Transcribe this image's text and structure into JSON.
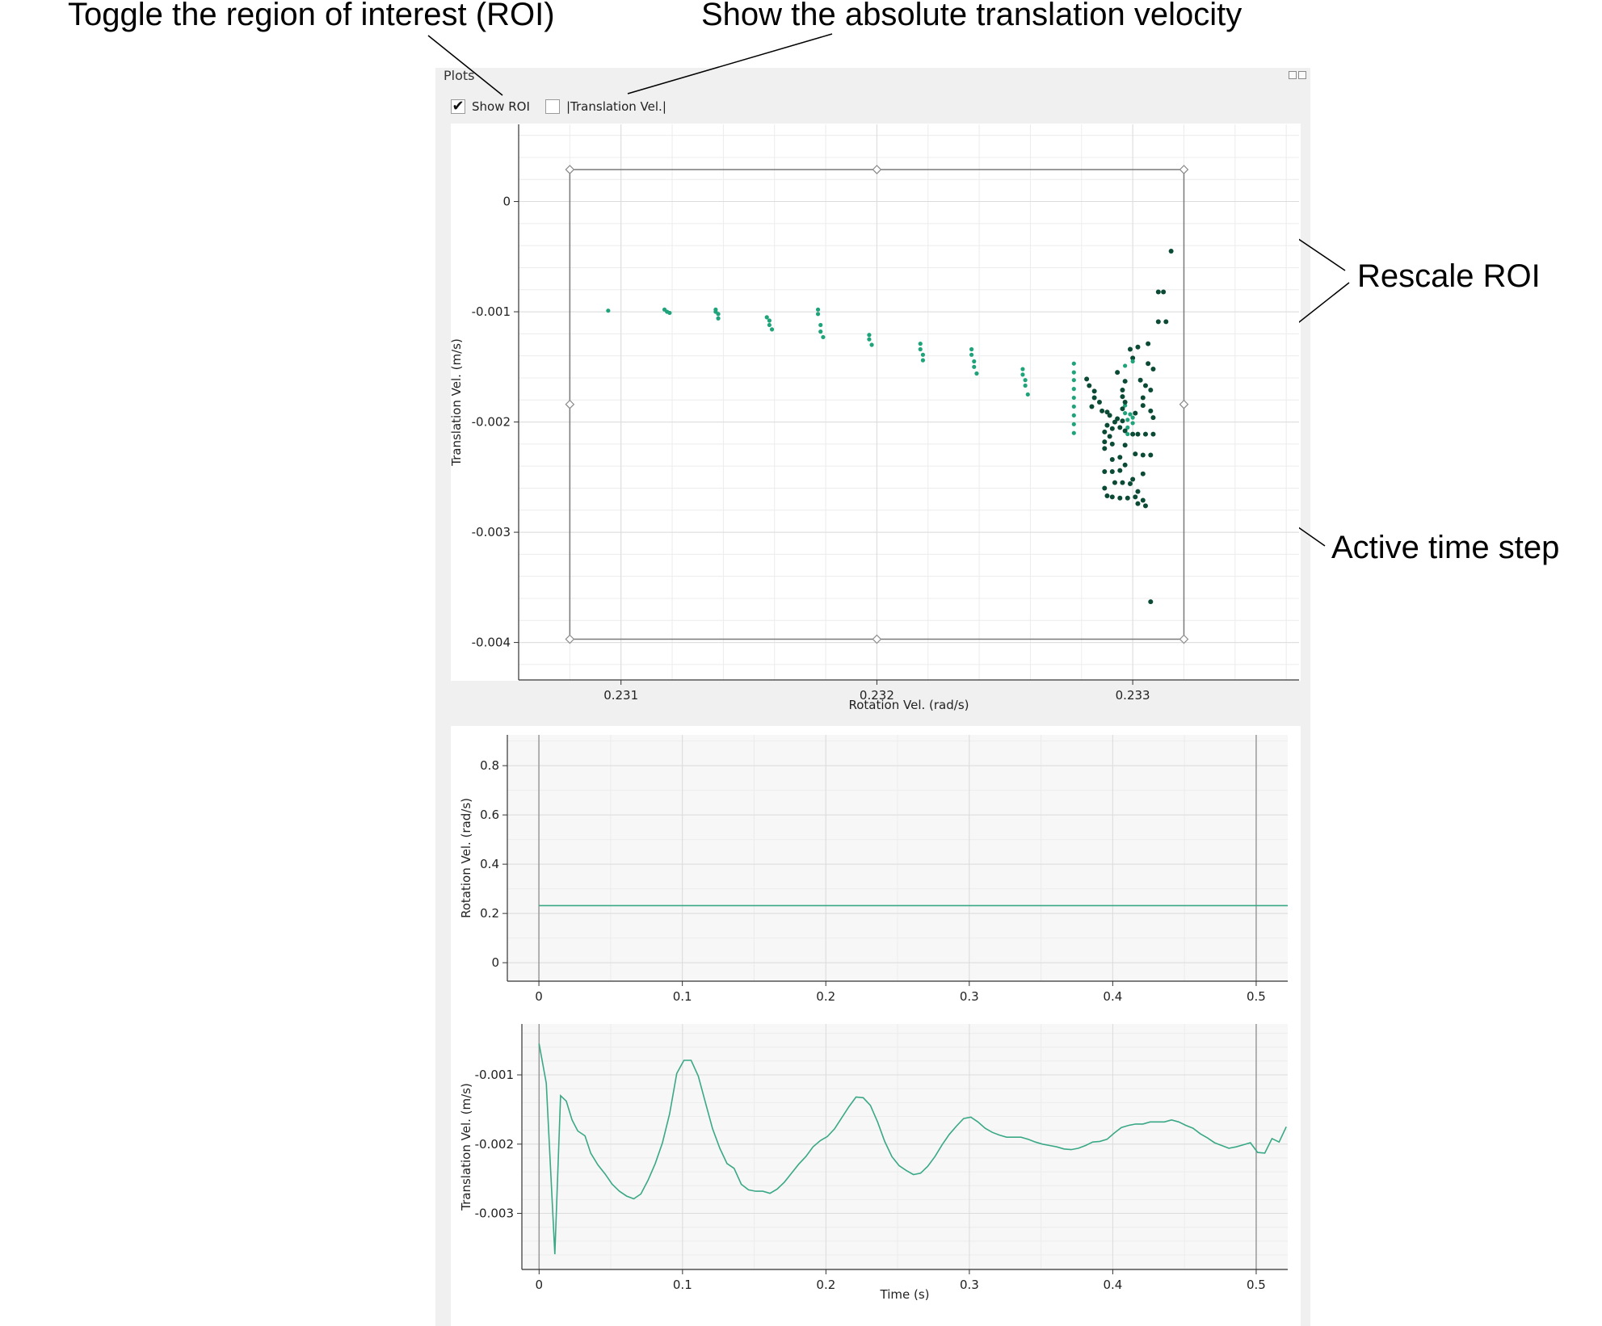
{
  "annotations": {
    "toggle_roi": "Toggle the region of interest (ROI)",
    "abs_vel": "Show the absolute translation velocity",
    "rescale_roi": "Rescale ROI",
    "active_step": "Active time step"
  },
  "panel": {
    "title": "Plots",
    "show_roi_label": "Show ROI",
    "show_roi_checked": true,
    "abs_vel_label": "|Translation Vel.|",
    "abs_vel_checked": false,
    "check_glyph": "✔"
  },
  "colors": {
    "series_light": "#1fa37a",
    "series_dark": "#0b4a35",
    "line": "#3aa886",
    "grid": "#dcdcdc",
    "roi": "#7a7a7a"
  },
  "chart_data": [
    {
      "type": "scatter",
      "xlabel": "Rotation Vel. (rad/s)",
      "ylabel": "Translation Vel. (m/s)",
      "xlim": [
        0.2306,
        0.23365
      ],
      "ylim": [
        -0.00434,
        0.0007
      ],
      "xticks": [
        "0.231",
        "0.232",
        "0.233"
      ],
      "xtick_values": [
        0.231,
        0.232,
        0.233
      ],
      "yticks": [
        "0",
        "-0.001",
        "-0.002",
        "-0.003",
        "-0.004"
      ],
      "ytick_values": [
        0,
        -0.001,
        -0.002,
        -0.003,
        -0.004
      ],
      "roi": {
        "x": [
          0.2308,
          0.2332
        ],
        "y": [
          -0.00397,
          0.00029
        ]
      },
      "series": [
        {
          "color_key": "series_light",
          "points": [
            [
              0.23095,
              -0.00099
            ],
            [
              0.23117,
              -0.00098
            ],
            [
              0.23118,
              -0.001
            ],
            [
              0.23119,
              -0.00101
            ],
            [
              0.23137,
              -0.00098
            ],
            [
              0.23137,
              -0.001
            ],
            [
              0.23138,
              -0.00102
            ],
            [
              0.23138,
              -0.00106
            ],
            [
              0.23157,
              -0.00105
            ],
            [
              0.23158,
              -0.00108
            ],
            [
              0.23158,
              -0.00112
            ],
            [
              0.23159,
              -0.00116
            ],
            [
              0.23177,
              -0.00098
            ],
            [
              0.23177,
              -0.00102
            ],
            [
              0.23178,
              -0.00112
            ],
            [
              0.23178,
              -0.00118
            ],
            [
              0.23179,
              -0.00123
            ],
            [
              0.23197,
              -0.00121
            ],
            [
              0.23197,
              -0.00125
            ],
            [
              0.23198,
              -0.0013
            ],
            [
              0.23217,
              -0.00129
            ],
            [
              0.23217,
              -0.00134
            ],
            [
              0.23218,
              -0.00139
            ],
            [
              0.23218,
              -0.00144
            ],
            [
              0.23237,
              -0.00134
            ],
            [
              0.23237,
              -0.00139
            ],
            [
              0.23238,
              -0.00145
            ],
            [
              0.23238,
              -0.0015
            ],
            [
              0.23239,
              -0.00156
            ],
            [
              0.23257,
              -0.00152
            ],
            [
              0.23257,
              -0.00157
            ],
            [
              0.23258,
              -0.00162
            ],
            [
              0.23258,
              -0.00167
            ],
            [
              0.23259,
              -0.00175
            ],
            [
              0.23277,
              -0.00147
            ],
            [
              0.23277,
              -0.00155
            ],
            [
              0.23277,
              -0.00162
            ],
            [
              0.23277,
              -0.0017
            ],
            [
              0.23277,
              -0.00178
            ],
            [
              0.23277,
              -0.00186
            ],
            [
              0.23277,
              -0.00194
            ],
            [
              0.23277,
              -0.00202
            ],
            [
              0.23277,
              -0.0021
            ],
            [
              0.23297,
              -0.00185
            ],
            [
              0.23297,
              -0.00192
            ],
            [
              0.23298,
              -0.00198
            ],
            [
              0.23298,
              -0.00205
            ]
          ]
        },
        {
          "color_key": "series_dark",
          "points": [
            [
              0.23315,
              -0.00045
            ],
            [
              0.23312,
              -0.00082
            ],
            [
              0.2331,
              -0.00082
            ],
            [
              0.23313,
              -0.00109
            ],
            [
              0.2331,
              -0.00109
            ],
            [
              0.23306,
              -0.00129
            ],
            [
              0.23302,
              -0.00132
            ],
            [
              0.23299,
              -0.00134
            ],
            [
              0.233,
              -0.00142
            ],
            [
              0.23306,
              -0.00147
            ],
            [
              0.23294,
              -0.00155
            ],
            [
              0.23308,
              -0.00152
            ],
            [
              0.23303,
              -0.00162
            ],
            [
              0.23297,
              -0.00163
            ],
            [
              0.23305,
              -0.00167
            ],
            [
              0.23296,
              -0.00171
            ],
            [
              0.23307,
              -0.00171
            ],
            [
              0.23282,
              -0.00161
            ],
            [
              0.23283,
              -0.00167
            ],
            [
              0.23285,
              -0.00172
            ],
            [
              0.23285,
              -0.00178
            ],
            [
              0.23287,
              -0.00182
            ],
            [
              0.23284,
              -0.00186
            ],
            [
              0.23288,
              -0.0019
            ],
            [
              0.2329,
              -0.00191
            ],
            [
              0.23296,
              -0.00177
            ],
            [
              0.23297,
              -0.00182
            ],
            [
              0.23296,
              -0.00188
            ],
            [
              0.23304,
              -0.00185
            ],
            [
              0.23304,
              -0.00178
            ],
            [
              0.23301,
              -0.00192
            ],
            [
              0.23307,
              -0.0019
            ],
            [
              0.23308,
              -0.00196
            ],
            [
              0.23291,
              -0.00194
            ],
            [
              0.23294,
              -0.00197
            ],
            [
              0.23296,
              -0.00199
            ],
            [
              0.23293,
              -0.002
            ],
            [
              0.2329,
              -0.00203
            ],
            [
              0.23292,
              -0.00206
            ],
            [
              0.23295,
              -0.00205
            ],
            [
              0.23289,
              -0.00209
            ],
            [
              0.23297,
              -0.00208
            ],
            [
              0.23291,
              -0.00213
            ],
            [
              0.23289,
              -0.00218
            ],
            [
              0.23292,
              -0.0022
            ],
            [
              0.23289,
              -0.00224
            ],
            [
              0.23297,
              -0.00221
            ],
            [
              0.233,
              -0.00211
            ],
            [
              0.23302,
              -0.00211
            ],
            [
              0.23305,
              -0.00211
            ],
            [
              0.23308,
              -0.00211
            ],
            [
              0.23301,
              -0.00229
            ],
            [
              0.23304,
              -0.0023
            ],
            [
              0.23307,
              -0.0023
            ],
            [
              0.23295,
              -0.00232
            ],
            [
              0.23292,
              -0.00234
            ],
            [
              0.23297,
              -0.00239
            ],
            [
              0.23289,
              -0.00245
            ],
            [
              0.23292,
              -0.00245
            ],
            [
              0.23295,
              -0.00244
            ],
            [
              0.23304,
              -0.00247
            ],
            [
              0.233,
              -0.00252
            ],
            [
              0.23293,
              -0.00255
            ],
            [
              0.23296,
              -0.00255
            ],
            [
              0.23299,
              -0.00256
            ],
            [
              0.23289,
              -0.0026
            ],
            [
              0.23302,
              -0.00263
            ],
            [
              0.2329,
              -0.00267
            ],
            [
              0.23292,
              -0.00268
            ],
            [
              0.23298,
              -0.00269
            ],
            [
              0.23295,
              -0.00269
            ],
            [
              0.23301,
              -0.00268
            ],
            [
              0.23304,
              -0.00271
            ],
            [
              0.23302,
              -0.00274
            ],
            [
              0.23305,
              -0.00276
            ],
            [
              0.23307,
              -0.00363
            ]
          ]
        },
        {
          "color_key": "series_light",
          "points": [
            [
              0.23299,
              -0.00193
            ],
            [
              0.233,
              -0.00196
            ],
            [
              0.233,
              -0.00201
            ],
            [
              0.23298,
              -0.00211
            ],
            [
              0.233,
              -0.00145
            ],
            [
              0.23297,
              -0.00149
            ]
          ]
        }
      ]
    },
    {
      "type": "line",
      "xlabel": "",
      "ylabel": "Rotation Vel. (rad/s)",
      "xlim": [
        -0.022,
        0.522
      ],
      "ylim": [
        -0.075,
        0.925
      ],
      "xticks": [
        "0",
        "0.1",
        "0.2",
        "0.3",
        "0.4",
        "0.5"
      ],
      "xtick_values": [
        0,
        0.1,
        0.2,
        0.3,
        0.4,
        0.5
      ],
      "yticks": [
        "0",
        "0.2",
        "0.4",
        "0.6",
        "0.8"
      ],
      "ytick_values": [
        0,
        0.2,
        0.4,
        0.6,
        0.8
      ],
      "vlines": [
        0,
        0.5
      ],
      "series": [
        {
          "color_key": "line",
          "x": [
            0,
            0.522
          ],
          "y": [
            0.232,
            0.232
          ]
        }
      ]
    },
    {
      "type": "line",
      "xlabel": "Time (s)",
      "ylabel": "Translation Vel. (m/s)",
      "xlim": [
        -0.012,
        0.522
      ],
      "ylim": [
        -0.00381,
        -0.000265
      ],
      "xticks": [
        "0",
        "0.1",
        "0.2",
        "0.3",
        "0.4",
        "0.5"
      ],
      "xtick_values": [
        0,
        0.1,
        0.2,
        0.3,
        0.4,
        0.5
      ],
      "yticks": [
        "-0.001",
        "-0.002",
        "-0.003"
      ],
      "ytick_values": [
        -0.001,
        -0.002,
        -0.003
      ],
      "vlines": [
        0,
        0.5
      ],
      "series": [
        {
          "color_key": "line",
          "x": [
            0.0,
            0.005,
            0.011,
            0.015,
            0.019,
            0.023,
            0.027,
            0.032,
            0.036,
            0.041,
            0.046,
            0.051,
            0.056,
            0.061,
            0.066,
            0.071,
            0.076,
            0.081,
            0.086,
            0.091,
            0.096,
            0.101,
            0.106,
            0.111,
            0.116,
            0.121,
            0.126,
            0.131,
            0.136,
            0.141,
            0.146,
            0.151,
            0.156,
            0.161,
            0.166,
            0.171,
            0.176,
            0.181,
            0.186,
            0.191,
            0.196,
            0.201,
            0.206,
            0.211,
            0.216,
            0.221,
            0.226,
            0.231,
            0.236,
            0.241,
            0.246,
            0.251,
            0.256,
            0.261,
            0.266,
            0.271,
            0.276,
            0.281,
            0.286,
            0.291,
            0.296,
            0.301,
            0.306,
            0.311,
            0.316,
            0.321,
            0.326,
            0.331,
            0.336,
            0.341,
            0.346,
            0.351,
            0.356,
            0.361,
            0.366,
            0.371,
            0.376,
            0.381,
            0.386,
            0.391,
            0.396,
            0.401,
            0.406,
            0.411,
            0.416,
            0.421,
            0.426,
            0.431,
            0.436,
            0.441,
            0.446,
            0.451,
            0.456,
            0.461,
            0.466,
            0.471,
            0.476,
            0.481,
            0.486,
            0.491,
            0.496,
            0.501,
            0.506,
            0.511,
            0.516,
            0.521
          ],
          "y": [
            -0.00055,
            -0.00112,
            -0.00359,
            -0.0013,
            -0.00138,
            -0.00165,
            -0.00181,
            -0.00188,
            -0.00213,
            -0.0023,
            -0.00243,
            -0.00258,
            -0.00268,
            -0.00275,
            -0.00279,
            -0.00272,
            -0.00252,
            -0.00228,
            -0.00198,
            -0.00156,
            -0.00098,
            -0.00079,
            -0.00079,
            -0.00102,
            -0.0014,
            -0.00178,
            -0.00206,
            -0.00228,
            -0.00235,
            -0.00258,
            -0.00266,
            -0.00268,
            -0.00268,
            -0.00271,
            -0.00265,
            -0.00255,
            -0.00242,
            -0.00229,
            -0.00218,
            -0.00204,
            -0.00195,
            -0.00189,
            -0.00178,
            -0.00162,
            -0.00146,
            -0.00132,
            -0.00133,
            -0.00144,
            -0.00168,
            -0.00196,
            -0.00218,
            -0.00231,
            -0.00238,
            -0.00244,
            -0.00242,
            -0.00232,
            -0.00218,
            -0.00201,
            -0.00186,
            -0.00174,
            -0.00163,
            -0.00161,
            -0.00168,
            -0.00177,
            -0.00183,
            -0.00187,
            -0.0019,
            -0.0019,
            -0.0019,
            -0.00193,
            -0.00197,
            -0.002,
            -0.00202,
            -0.00204,
            -0.00207,
            -0.00208,
            -0.00206,
            -0.00202,
            -0.00197,
            -0.00196,
            -0.00193,
            -0.00184,
            -0.00176,
            -0.00173,
            -0.00171,
            -0.00171,
            -0.00168,
            -0.00168,
            -0.00168,
            -0.00165,
            -0.00168,
            -0.00173,
            -0.00177,
            -0.00185,
            -0.00191,
            -0.00198,
            -0.00202,
            -0.00206,
            -0.00204,
            -0.00201,
            -0.00198,
            -0.00212,
            -0.00213,
            -0.00192,
            -0.00197,
            -0.00175
          ]
        }
      ]
    }
  ]
}
